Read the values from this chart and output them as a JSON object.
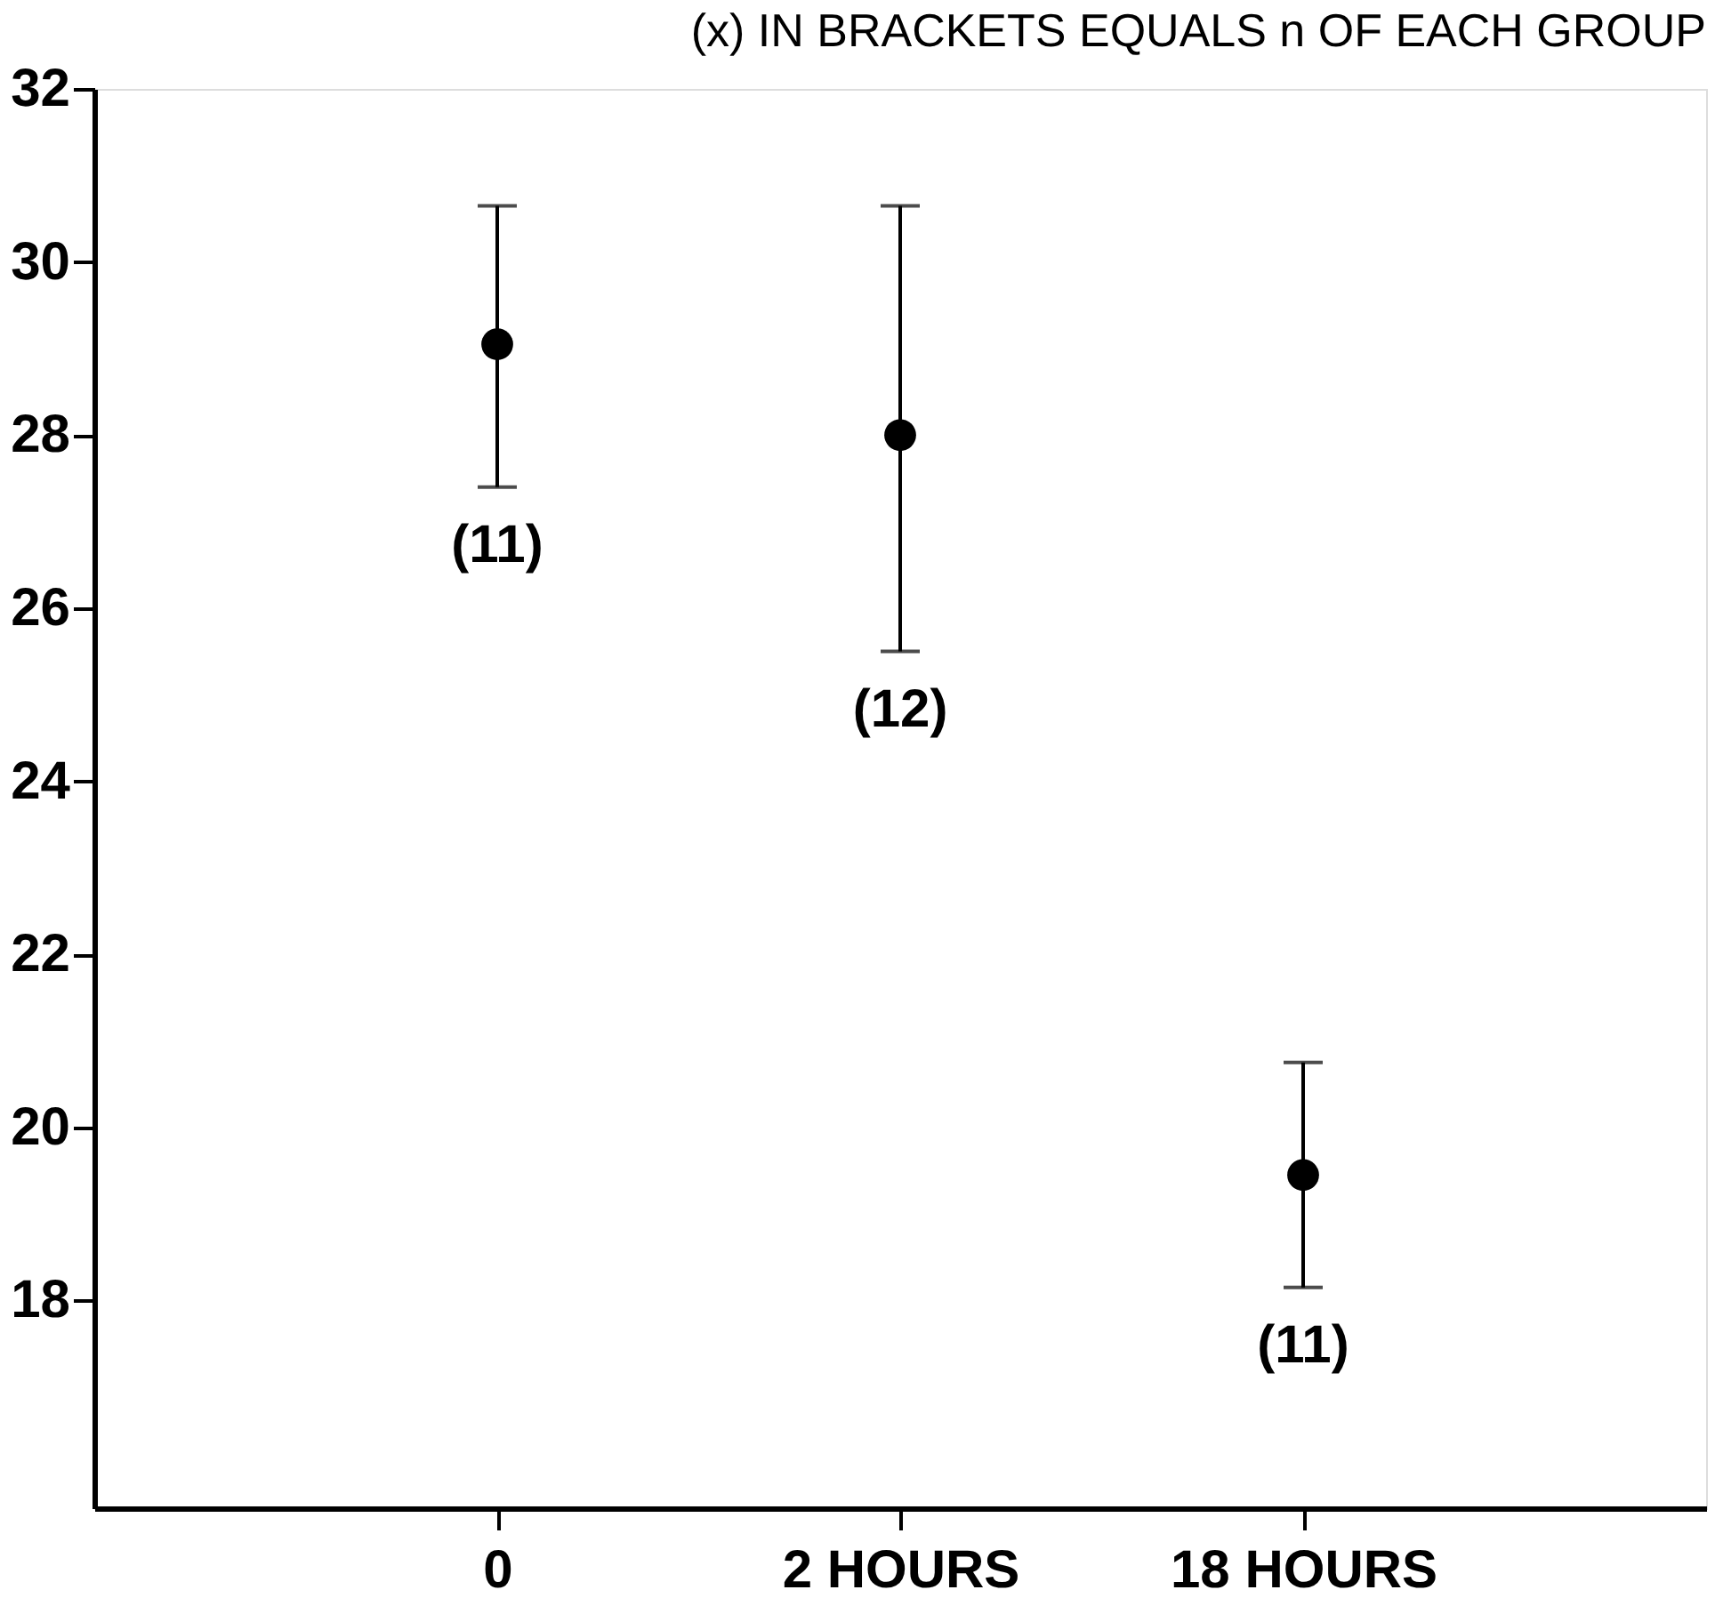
{
  "chart_data": {
    "type": "scatter",
    "title": "(x) IN BRACKETS EQUALS n OF EACH GROUP",
    "categories": [
      "0",
      "2 HOURS",
      "18 HOURS"
    ],
    "series": [
      {
        "color": "#000000",
        "values": [
          29.05,
          28.0,
          19.45
        ],
        "errors": [
          [
            27.4,
            30.65
          ],
          [
            25.5,
            30.65
          ],
          [
            18.15,
            20.75
          ]
        ]
      }
    ],
    "ylim": [
      15.6,
      32
    ],
    "yticks": [
      18,
      20,
      22,
      24,
      26,
      28,
      30,
      32
    ],
    "grid": false,
    "marker": "circle",
    "annotations": [
      "(11)",
      "(12)",
      "(11)"
    ]
  }
}
